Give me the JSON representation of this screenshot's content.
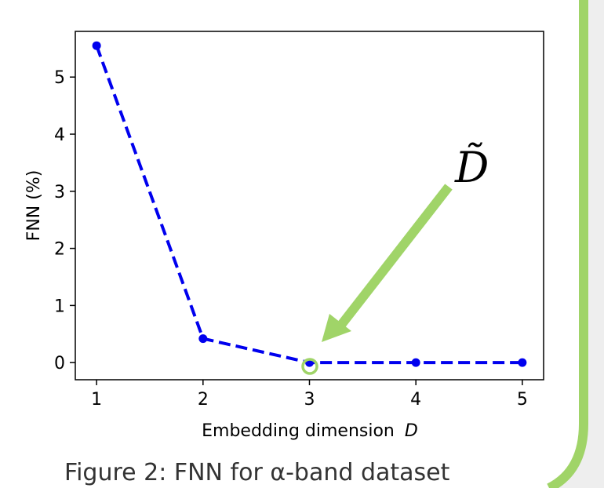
{
  "caption": "Figure 2: FNN for α-band dataset",
  "colors": {
    "series": "#0000ee",
    "annotation": "#a0d468",
    "panel_bg": "#eeeeee"
  },
  "chart_data": {
    "type": "line",
    "x": [
      1,
      2,
      3,
      4,
      5
    ],
    "series": [
      {
        "values": [
          5.55,
          0.42,
          0.0,
          0.0,
          0.0
        ]
      }
    ],
    "xlabel": "Embedding dimension",
    "xlabel_symbol": "D",
    "ylabel": "FNN (%)",
    "xlim": [
      0.8,
      5.2
    ],
    "ylim": [
      -0.3,
      5.8
    ],
    "xticks": [
      1,
      2,
      3,
      4,
      5
    ],
    "yticks": [
      0,
      1,
      2,
      3,
      4,
      5
    ],
    "line_style": "dashed",
    "grid": false,
    "annotation": {
      "label": "D̃",
      "target_x": 3,
      "target_y": 0
    }
  }
}
